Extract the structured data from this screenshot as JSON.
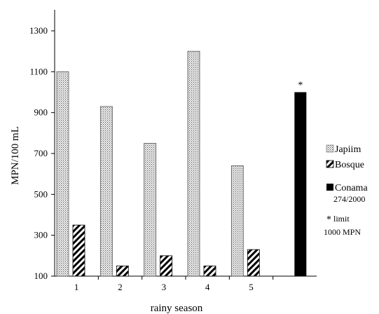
{
  "chart_data": {
    "type": "bar",
    "xlabel": "rainy season",
    "ylabel": "MPN/100 mL",
    "ylim": [
      100,
      1300
    ],
    "yticks": [
      100,
      300,
      500,
      700,
      900,
      1100,
      1300
    ],
    "categories": [
      "1",
      "2",
      "3",
      "4",
      "5",
      ""
    ],
    "series": [
      {
        "name": "Japiim",
        "pattern": "dots",
        "values": [
          1100,
          930,
          750,
          1200,
          640,
          null
        ]
      },
      {
        "name": "Bosque",
        "pattern": "hatch",
        "values": [
          350,
          150,
          200,
          150,
          230,
          null
        ]
      },
      {
        "name": "Conama 274/2000",
        "pattern": "solid",
        "color": "#000000",
        "values": [
          null,
          null,
          null,
          null,
          null,
          1000
        ]
      }
    ],
    "annotation": "*",
    "legend": {
      "placement": "right",
      "entries": [
        {
          "symbol": "dots",
          "text": "Japiim"
        },
        {
          "symbol": "hatch",
          "text": "Bosque"
        },
        {
          "symbol": "solid",
          "text": "Conama",
          "subtext": "274/2000"
        },
        {
          "symbol": "*",
          "text": "limit",
          "subtext": "1000 MPN"
        }
      ]
    },
    "grid": false
  }
}
